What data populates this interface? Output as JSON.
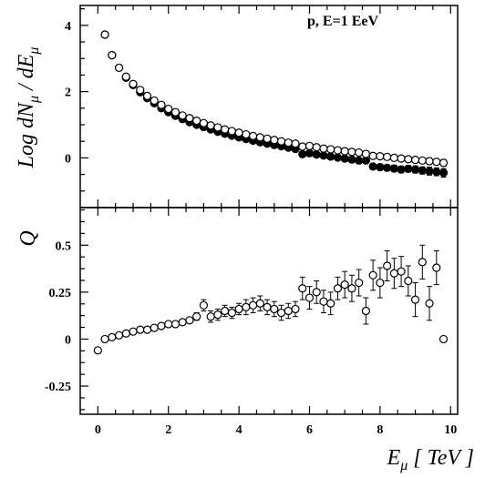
{
  "chart_data": [
    {
      "type": "scatter",
      "panel": "top",
      "ylabel_main": "Log dN",
      "ylabel_sub": "μ",
      "ylabel_mid": " / dE",
      "ylabel_sub2": "μ",
      "annotation": "p, E=1 EeV",
      "xlim": [
        -0.5,
        10.2
      ],
      "ylim": [
        -1.5,
        4.6
      ],
      "yticks": [
        0,
        2,
        4
      ],
      "ytick_labels": [
        "0",
        "2",
        "4"
      ],
      "grid": false,
      "series": [
        {
          "marker": "filled",
          "x": [
            0.2,
            0.4,
            0.6,
            0.8,
            1.0,
            1.2,
            1.4,
            1.6,
            1.8,
            2.0,
            2.2,
            2.4,
            2.6,
            2.8,
            3.0,
            3.2,
            3.4,
            3.6,
            3.8,
            4.0,
            4.2,
            4.4,
            4.6,
            4.8,
            5.0,
            5.2,
            5.4,
            5.6,
            5.8,
            6.0,
            6.2,
            6.4,
            6.6,
            6.8,
            7.0,
            7.2,
            7.4,
            7.6,
            7.8,
            8.0,
            8.2,
            8.4,
            8.6,
            8.8,
            9.0,
            9.2,
            9.4,
            9.6,
            9.8
          ],
          "y": [
            3.72,
            3.1,
            2.72,
            2.42,
            2.2,
            1.98,
            1.8,
            1.65,
            1.5,
            1.38,
            1.27,
            1.17,
            1.08,
            1.0,
            0.93,
            0.86,
            0.79,
            0.73,
            0.67,
            0.62,
            0.57,
            0.52,
            0.47,
            0.43,
            0.39,
            0.35,
            0.31,
            0.27,
            0.11,
            0.14,
            0.1,
            0.07,
            0.04,
            0.01,
            -0.02,
            -0.05,
            -0.08,
            -0.08,
            -0.26,
            -0.28,
            -0.3,
            -0.32,
            -0.35,
            -0.33,
            -0.35,
            -0.38,
            -0.4,
            -0.42,
            -0.45
          ],
          "err": [
            0,
            0,
            0,
            0,
            0,
            0,
            0,
            0,
            0,
            0,
            0,
            0,
            0,
            0,
            0,
            0,
            0,
            0,
            0,
            0,
            0,
            0,
            0,
            0,
            0,
            0,
            0,
            0,
            0,
            0,
            0,
            0,
            0,
            0,
            0,
            0,
            0,
            0,
            0.08,
            0.09,
            0.09,
            0.1,
            0.1,
            0.1,
            0.11,
            0.11,
            0.12,
            0.12,
            0.13
          ]
        },
        {
          "marker": "open",
          "x": [
            0.2,
            0.4,
            0.6,
            0.8,
            1.0,
            1.2,
            1.4,
            1.6,
            1.8,
            2.0,
            2.2,
            2.4,
            2.6,
            2.8,
            3.0,
            3.2,
            3.4,
            3.6,
            3.8,
            4.0,
            4.2,
            4.4,
            4.6,
            4.8,
            5.0,
            5.2,
            5.4,
            5.6,
            5.8,
            6.0,
            6.2,
            6.4,
            6.6,
            6.8,
            7.0,
            7.2,
            7.4,
            7.6,
            7.8,
            8.0,
            8.2,
            8.4,
            8.6,
            8.8,
            9.0,
            9.2,
            9.4,
            9.6,
            9.8
          ],
          "y": [
            3.72,
            3.1,
            2.72,
            2.45,
            2.23,
            2.05,
            1.87,
            1.73,
            1.6,
            1.48,
            1.38,
            1.28,
            1.2,
            1.12,
            1.05,
            0.98,
            0.92,
            0.86,
            0.81,
            0.76,
            0.71,
            0.66,
            0.62,
            0.58,
            0.54,
            0.5,
            0.46,
            0.43,
            0.34,
            0.36,
            0.32,
            0.28,
            0.26,
            0.23,
            0.2,
            0.18,
            0.16,
            0.12,
            0.06,
            0.05,
            0.03,
            0.0,
            -0.02,
            -0.04,
            -0.06,
            -0.08,
            -0.1,
            -0.12,
            -0.15
          ],
          "err": [
            0,
            0,
            0,
            0,
            0,
            0,
            0,
            0,
            0,
            0,
            0,
            0,
            0,
            0,
            0,
            0,
            0,
            0,
            0,
            0,
            0,
            0,
            0,
            0,
            0,
            0,
            0,
            0,
            0,
            0,
            0,
            0,
            0,
            0,
            0,
            0,
            0,
            0,
            0,
            0,
            0,
            0,
            0,
            0,
            0,
            0,
            0.1,
            0,
            0.1
          ]
        }
      ]
    },
    {
      "type": "scatter",
      "panel": "bottom",
      "ylabel": "Q",
      "xlabel_main": "E",
      "xlabel_sub": "μ",
      "xlabel_rest": " [ TeV ]",
      "xlim": [
        -0.5,
        10.2
      ],
      "ylim": [
        -0.4,
        0.7
      ],
      "xticks": [
        0,
        2,
        4,
        6,
        8,
        10
      ],
      "xtick_labels": [
        "0",
        "2",
        "4",
        "6",
        "8",
        "10"
      ],
      "yticks": [
        -0.25,
        0,
        0.25,
        0.5
      ],
      "ytick_labels": [
        "-0.25",
        "0",
        "0.25",
        "0.5"
      ],
      "grid": false,
      "series": [
        {
          "marker": "open",
          "x": [
            0.0,
            0.2,
            0.4,
            0.6,
            0.8,
            1.0,
            1.2,
            1.4,
            1.6,
            1.8,
            2.0,
            2.2,
            2.4,
            2.6,
            2.8,
            3.0,
            3.2,
            3.4,
            3.6,
            3.8,
            4.0,
            4.2,
            4.4,
            4.6,
            4.8,
            5.0,
            5.2,
            5.4,
            5.6,
            5.8,
            6.0,
            6.2,
            6.4,
            6.6,
            6.8,
            7.0,
            7.2,
            7.4,
            7.6,
            7.8,
            8.0,
            8.2,
            8.4,
            8.6,
            8.8,
            9.0,
            9.2,
            9.4,
            9.6,
            9.8
          ],
          "y": [
            -0.06,
            0.0,
            0.01,
            0.02,
            0.03,
            0.04,
            0.05,
            0.05,
            0.06,
            0.07,
            0.08,
            0.08,
            0.09,
            0.1,
            0.12,
            0.18,
            0.12,
            0.13,
            0.15,
            0.14,
            0.16,
            0.17,
            0.18,
            0.19,
            0.17,
            0.16,
            0.14,
            0.15,
            0.16,
            0.27,
            0.22,
            0.25,
            0.2,
            0.19,
            0.27,
            0.29,
            0.27,
            0.3,
            0.15,
            0.34,
            0.3,
            0.39,
            0.35,
            0.36,
            0.31,
            0.21,
            0.41,
            0.19,
            0.38,
            0.0
          ],
          "err": [
            0,
            0,
            0,
            0,
            0,
            0,
            0,
            0,
            0,
            0,
            0,
            0,
            0,
            0,
            0.02,
            0.03,
            0.03,
            0.03,
            0.03,
            0.03,
            0.03,
            0.04,
            0.04,
            0.04,
            0.04,
            0.04,
            0.04,
            0.04,
            0.04,
            0.06,
            0.06,
            0.06,
            0.06,
            0.06,
            0.06,
            0.07,
            0.07,
            0.07,
            0.07,
            0.08,
            0.08,
            0.08,
            0.08,
            0.08,
            0.08,
            0.09,
            0.09,
            0.09,
            0.09,
            0.0
          ]
        }
      ]
    }
  ]
}
